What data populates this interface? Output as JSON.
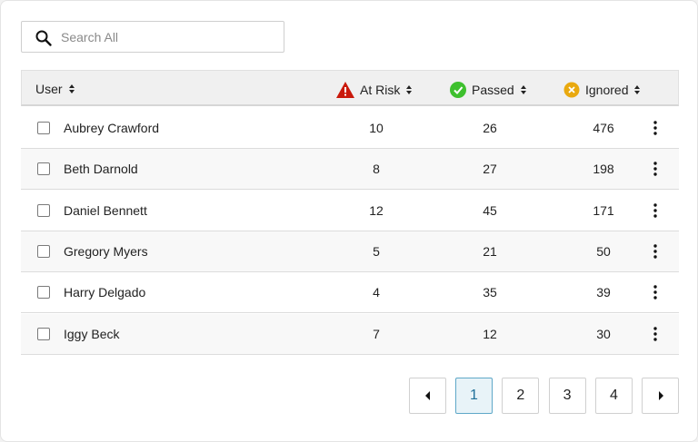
{
  "search": {
    "placeholder": "Search All"
  },
  "table": {
    "columns": [
      "User",
      "At Risk",
      "Passed",
      "Ignored"
    ],
    "rows": [
      [
        "Aubrey Crawford",
        10,
        26,
        476
      ],
      [
        "Beth Darnold",
        8,
        27,
        198
      ],
      [
        "Daniel Bennett",
        12,
        45,
        171
      ],
      [
        "Gregory Myers",
        5,
        21,
        50
      ],
      [
        "Harry Delgado",
        4,
        35,
        39
      ],
      [
        "Iggy Beck",
        7,
        12,
        30
      ]
    ]
  },
  "pagination": {
    "pages": [
      1,
      2,
      3,
      4
    ],
    "current": 1
  }
}
